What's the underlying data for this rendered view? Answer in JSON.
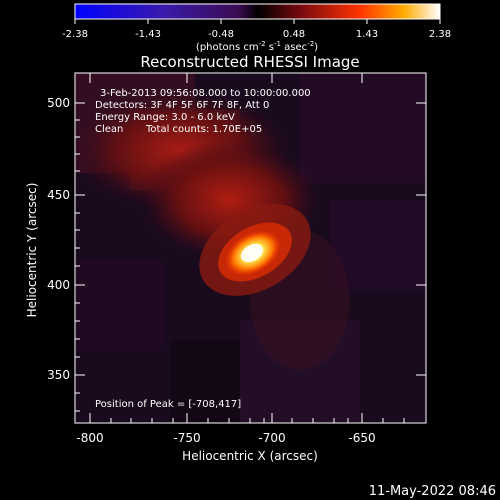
{
  "colorbar": {
    "ticks": [
      "-2.38",
      "-1.43",
      "-0.48",
      "0.48",
      "1.43",
      "2.38"
    ],
    "units_text": "(photons cm",
    "units_sup1": "-2",
    "units_mid": " s",
    "units_sup2": "-1",
    "units_end": " asec",
    "units_sup3": "-2",
    "units_close": ")"
  },
  "title": "Reconstructed RHESSI Image",
  "annotations": {
    "time_range": "3-Feb-2013 09:56:08.000 to 10:00:00.000",
    "detectors": "Detectors: 3F 4F 5F 6F 7F 8F, Att 0",
    "energy": "Energy Range: 3.0 - 6.0 keV",
    "clean": "Clean",
    "counts": "Total counts: 1.70E+05",
    "peak": "Position of Peak = [-708,417]"
  },
  "axes": {
    "xlabel": "Heliocentric X (arcsec)",
    "ylabel": "Heliocentric Y (arcsec)",
    "xticks": [
      "-800",
      "-750",
      "-700",
      "-650"
    ],
    "yticks": [
      "350",
      "400",
      "450",
      "500"
    ]
  },
  "footer_date": "11-May-2022 08:46"
}
